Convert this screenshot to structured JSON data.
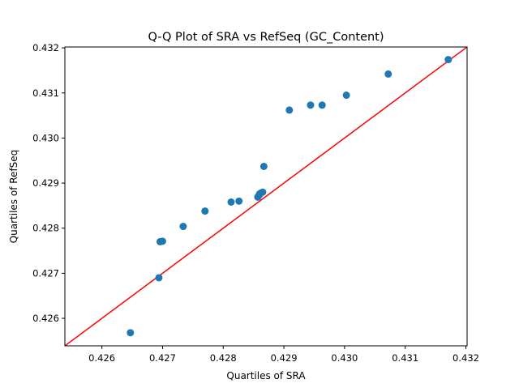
{
  "chart_data": {
    "type": "scatter",
    "title": "Q-Q Plot of SRA vs RefSeq (GC_Content)",
    "xlabel": "Quartiles of SRA",
    "ylabel": "Quartiles of RefSeq",
    "xlim": [
      0.42539,
      0.43202
    ],
    "ylim": [
      0.42539,
      0.43202
    ],
    "xticks": [
      "0.426",
      "0.427",
      "0.428",
      "0.429",
      "0.430",
      "0.431",
      "0.432"
    ],
    "yticks": [
      "0.426",
      "0.427",
      "0.428",
      "0.429",
      "0.430",
      "0.431",
      "0.432"
    ],
    "grid": false,
    "legend": "none",
    "marker_color": "#1f77b4",
    "reference_line": {
      "color": "#ff0000",
      "from": [
        0.42539,
        0.42539
      ],
      "to": [
        0.43202,
        0.43202
      ]
    },
    "points": [
      {
        "x": 0.42647,
        "y": 0.42568
      },
      {
        "x": 0.42694,
        "y": 0.4269
      },
      {
        "x": 0.42696,
        "y": 0.4277
      },
      {
        "x": 0.427,
        "y": 0.42771
      },
      {
        "x": 0.42734,
        "y": 0.42804
      },
      {
        "x": 0.4277,
        "y": 0.42838
      },
      {
        "x": 0.42813,
        "y": 0.42858
      },
      {
        "x": 0.42826,
        "y": 0.4286
      },
      {
        "x": 0.42857,
        "y": 0.42869
      },
      {
        "x": 0.42859,
        "y": 0.42873
      },
      {
        "x": 0.4286,
        "y": 0.42876
      },
      {
        "x": 0.42862,
        "y": 0.42878
      },
      {
        "x": 0.42865,
        "y": 0.4288
      },
      {
        "x": 0.42867,
        "y": 0.42937
      },
      {
        "x": 0.42909,
        "y": 0.43062
      },
      {
        "x": 0.42944,
        "y": 0.43073
      },
      {
        "x": 0.42963,
        "y": 0.43073
      },
      {
        "x": 0.43003,
        "y": 0.43095
      },
      {
        "x": 0.43072,
        "y": 0.43142
      },
      {
        "x": 0.43171,
        "y": 0.43174
      }
    ]
  }
}
